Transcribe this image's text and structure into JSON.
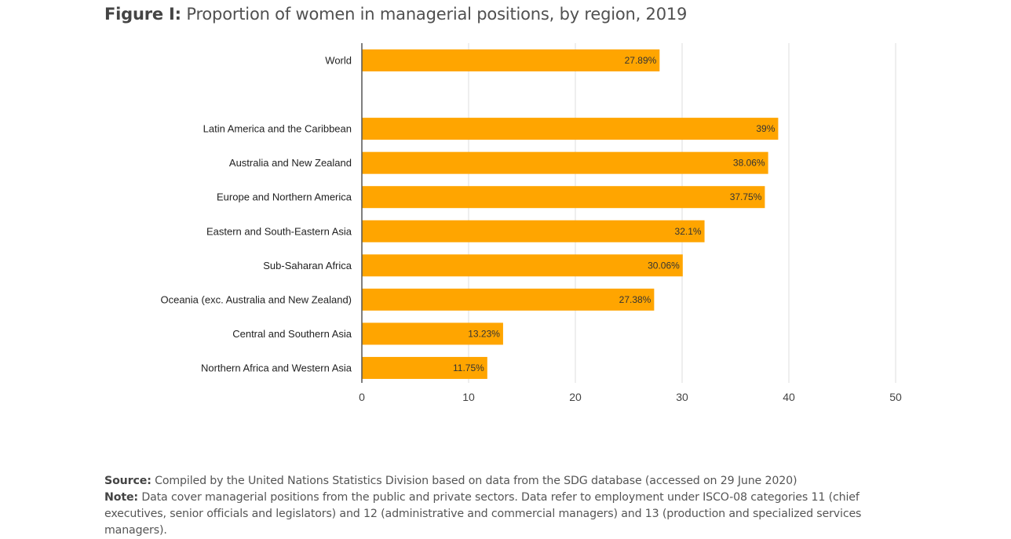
{
  "figure": {
    "label": "Figure I:",
    "title": "Proportion of women in managerial positions, by region, 2019"
  },
  "chart_data": {
    "type": "bar",
    "orientation": "horizontal",
    "categories": [
      "World",
      "",
      "Latin America and the Caribbean",
      "Australia and New Zealand",
      "Europe and Northern America",
      "Eastern and South-Eastern Asia",
      "Sub-Saharan Africa",
      "Oceania (exc. Australia and New Zealand)",
      "Central and Southern Asia",
      "Northern Africa and Western Asia"
    ],
    "values": [
      27.89,
      null,
      39,
      38.06,
      37.75,
      32.1,
      30.06,
      27.38,
      13.23,
      11.75
    ],
    "data_labels": [
      "27.89%",
      "",
      "39%",
      "38.06%",
      "37.75%",
      "32.1%",
      "30.06%",
      "27.38%",
      "13.23%",
      "11.75%"
    ],
    "xlim": [
      0,
      50
    ],
    "ticks": [
      0,
      10,
      20,
      30,
      40,
      50
    ],
    "tick_labels": [
      "0",
      "10",
      "20",
      "30",
      "40",
      "50"
    ],
    "grid": true,
    "bar_color": "#FFA500",
    "grid_color": "#DDDDDD",
    "axis_color": "#555555",
    "legend": "none"
  },
  "notes": {
    "source_label": "Source:",
    "source_text": "Compiled by the United Nations Statistics Division based on data from the SDG database (accessed on 29 June 2020)",
    "note_label": "Note:",
    "note_text": "Data cover managerial positions from the public and private sectors. Data refer to employment under ISCO-08 categories 11 (chief executives, senior officials and legislators) and 12 (administrative and commercial managers) and 13 (production and specialized services managers)."
  }
}
